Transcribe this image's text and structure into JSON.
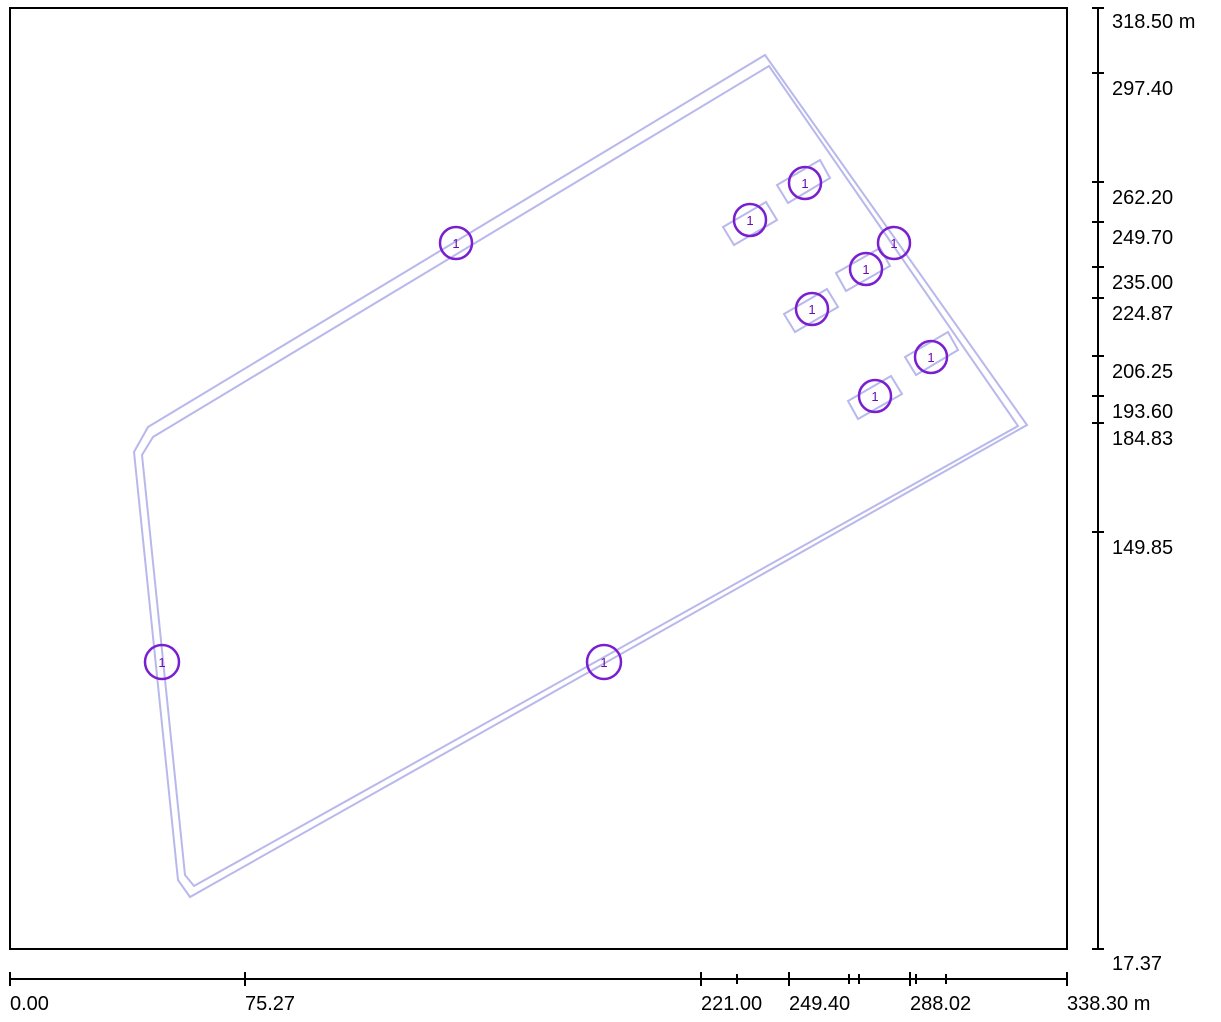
{
  "y_axis": {
    "unit_label": "318.50 m",
    "ticks": [
      "297.40",
      "262.20",
      "249.70",
      "235.00",
      "224.87",
      "206.25",
      "193.60",
      "184.83",
      "149.85",
      "17.37"
    ]
  },
  "x_axis": {
    "ticks": [
      "0.00",
      "75.27",
      "221.00",
      "249.40",
      "288.02",
      "338.30 m"
    ]
  },
  "markers": {
    "label": "1",
    "count": 10
  },
  "colors": {
    "outline": "#b8b8ec",
    "marker": "#7a1fd0",
    "frame": "#000000"
  }
}
